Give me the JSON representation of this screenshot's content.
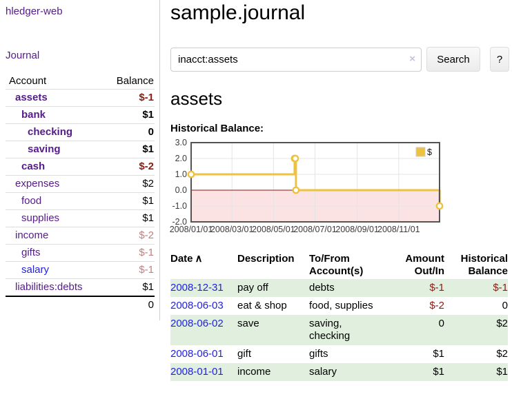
{
  "app": {
    "title": "hledger-web",
    "nav": {
      "journal": "Journal"
    }
  },
  "sidebar": {
    "table": {
      "account_header": "Account",
      "balance_header": "Balance"
    },
    "accounts": [
      {
        "name": "assets",
        "depth": 1,
        "bold": true,
        "balance": "$-1",
        "balance_style": "negative-strong",
        "link_style": "visited"
      },
      {
        "name": "bank",
        "depth": 2,
        "bold": true,
        "balance": "$1",
        "balance_style": "normal",
        "link_style": "visited"
      },
      {
        "name": "checking",
        "depth": 3,
        "bold": true,
        "balance": "0",
        "balance_style": "normal",
        "link_style": "visited"
      },
      {
        "name": "saving",
        "depth": 3,
        "bold": true,
        "balance": "$1",
        "balance_style": "normal",
        "link_style": "visited"
      },
      {
        "name": "cash",
        "depth": 2,
        "bold": true,
        "balance": "$-2",
        "balance_style": "negative-strong",
        "link_style": "visited"
      },
      {
        "name": "expenses",
        "depth": 1,
        "bold": false,
        "balance": "$2",
        "balance_style": "normal",
        "link_style": "visited"
      },
      {
        "name": "food",
        "depth": 2,
        "bold": false,
        "balance": "$1",
        "balance_style": "normal",
        "link_style": "visited"
      },
      {
        "name": "supplies",
        "depth": 2,
        "bold": false,
        "balance": "$1",
        "balance_style": "normal",
        "link_style": "visited"
      },
      {
        "name": "income",
        "depth": 1,
        "bold": false,
        "balance": "$-2",
        "balance_style": "negative-soft",
        "link_style": "visited"
      },
      {
        "name": "gifts",
        "depth": 2,
        "bold": false,
        "balance": "$-1",
        "balance_style": "negative-soft",
        "link_style": "visited"
      },
      {
        "name": "salary",
        "depth": 2,
        "bold": false,
        "balance": "$-1",
        "balance_style": "negative-soft",
        "link_style": "unvisited"
      },
      {
        "name": "liabilities:debts",
        "depth": 1,
        "bold": false,
        "balance": "$1",
        "balance_style": "normal",
        "link_style": "visited"
      }
    ],
    "total": "0"
  },
  "main": {
    "title": "sample.journal",
    "search": {
      "value": "inacct:assets",
      "clear_icon": "×",
      "button": "Search",
      "help_button": "?"
    },
    "account_heading": "assets",
    "chart_heading": "Historical Balance:"
  },
  "chart_data": {
    "type": "line",
    "title": "Historical Balance:",
    "step": true,
    "series": [
      {
        "name": "$",
        "color": "#edc240",
        "x": [
          "2008-01-01",
          "2008-06-01",
          "2008-06-02",
          "2008-06-03",
          "2008-12-31"
        ],
        "y": [
          1,
          2,
          2,
          0,
          -1
        ]
      }
    ],
    "x_range": [
      "2008-01-01",
      "2008-12-31"
    ],
    "ylim": [
      -2,
      3
    ],
    "xticks": [
      {
        "label": "2008/01/01",
        "date": "2008-01-01"
      },
      {
        "label": "2008/03/01",
        "date": "2008-03-01"
      },
      {
        "label": "2008/05/01",
        "date": "2008-05-01"
      },
      {
        "label": "2008/07/01",
        "date": "2008-07-01"
      },
      {
        "label": "2008/09/01",
        "date": "2008-09-01"
      },
      {
        "label": "2008/11/01",
        "date": "2008-11-01"
      }
    ],
    "yticks": [
      {
        "label": "3.0",
        "value": 3
      },
      {
        "label": "2.0",
        "value": 2
      },
      {
        "label": "1.0",
        "value": 1
      },
      {
        "label": "0.0",
        "value": 0
      },
      {
        "label": "-1.0",
        "value": -1
      },
      {
        "label": "-2.0",
        "value": -2
      }
    ],
    "grid": true,
    "legend": {
      "label": "$",
      "position": "top-right"
    },
    "colors": {
      "negative_region": "#fbe3e3",
      "zero_line": "#8b1010",
      "grid": "#e4e4e4",
      "border": "#545454",
      "tick_text": "#3a3a3a"
    }
  },
  "register": {
    "sort_icon": "∧",
    "columns": [
      {
        "lines": [
          "Date"
        ]
      },
      {
        "lines": [
          "Description"
        ]
      },
      {
        "lines": [
          "To/From",
          "Account(s)"
        ]
      },
      {
        "lines": [
          "Amount",
          "Out/In"
        ],
        "align": "right"
      },
      {
        "lines": [
          "Historical",
          "Balance"
        ],
        "align": "right"
      }
    ],
    "rows": [
      {
        "date": "2008-12-31",
        "description": "pay off",
        "accounts": "debts",
        "amount": "$-1",
        "amount_negative": true,
        "balance": "$-1",
        "balance_negative": true
      },
      {
        "date": "2008-06-03",
        "description": "eat & shop",
        "accounts": "food, supplies",
        "amount": "$-2",
        "amount_negative": true,
        "balance": "0",
        "balance_negative": false
      },
      {
        "date": "2008-06-02",
        "description": "save",
        "accounts": "saving, checking",
        "amount": "0",
        "amount_negative": false,
        "balance": "$2",
        "balance_negative": false
      },
      {
        "date": "2008-06-01",
        "description": "gift",
        "accounts": "gifts",
        "amount": "$1",
        "amount_negative": false,
        "balance": "$2",
        "balance_negative": false
      },
      {
        "date": "2008-01-01",
        "description": "income",
        "accounts": "salary",
        "amount": "$1",
        "amount_negative": false,
        "balance": "$1",
        "balance_negative": false
      }
    ]
  },
  "colors": {
    "link_visited_purple": "#551a8b",
    "link_blue": "#2222dd",
    "negative_strong": "#8f1a12",
    "negative_soft": "#c08080",
    "row_stripe_green": "#e0efde",
    "chart_line_gold": "#edc240"
  }
}
